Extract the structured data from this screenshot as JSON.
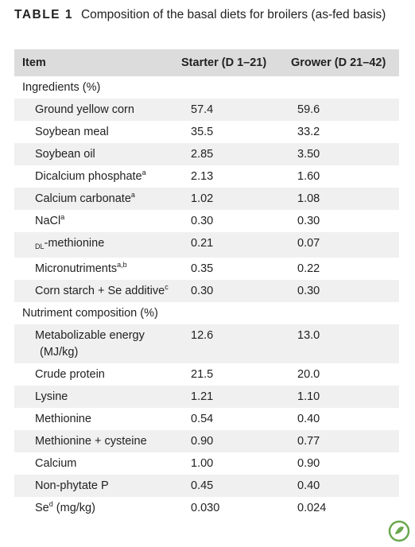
{
  "title": {
    "label": "TABLE 1",
    "caption": "Composition of the basal diets for broilers (as-fed basis)"
  },
  "table": {
    "header": [
      "Item",
      "Starter (D 1–21)",
      "Grower (D 21–42)"
    ],
    "sections": [
      {
        "heading": "Ingredients (%)",
        "rows": [
          {
            "item": "Ground yellow corn",
            "starter": "57.4",
            "grower": "59.6"
          },
          {
            "item": "Soybean meal",
            "starter": "35.5",
            "grower": "33.2"
          },
          {
            "item": "Soybean oil",
            "starter": "2.85",
            "grower": "3.50"
          },
          {
            "item": "Dicalcium phosphate",
            "note": "a",
            "starter": "2.13",
            "grower": "1.60"
          },
          {
            "item": "Calcium carbonate",
            "note": "a",
            "starter": "1.02",
            "grower": "1.08"
          },
          {
            "item": "NaCl",
            "note": "a",
            "starter": "0.30",
            "grower": "0.30"
          },
          {
            "prefix": "DL",
            "item": "-methionine",
            "starter": "0.21",
            "grower": "0.07"
          },
          {
            "item": "Micronutriments",
            "note": "a,b",
            "starter": "0.35",
            "grower": "0.22"
          },
          {
            "item": "Corn starch + Se additive",
            "note": "c",
            "starter": "0.30",
            "grower": "0.30"
          }
        ]
      },
      {
        "heading": "Nutriment composition (%)",
        "rows": [
          {
            "item": "Metabolizable energy (MJ/kg)",
            "starter": "12.6",
            "grower": "13.0"
          },
          {
            "item": "Crude protein",
            "starter": "21.5",
            "grower": "20.0"
          },
          {
            "item": "Lysine",
            "starter": "1.21",
            "grower": "1.10"
          },
          {
            "item": "Methionine",
            "starter": "0.54",
            "grower": "0.40"
          },
          {
            "item": "Methionine + cysteine",
            "starter": "0.90",
            "grower": "0.77"
          },
          {
            "item": "Calcium",
            "starter": "1.00",
            "grower": "0.90"
          },
          {
            "item": "Non-phytate P",
            "starter": "0.45",
            "grower": "0.40"
          },
          {
            "item": "Se",
            "note": "d",
            "unit": "(mg/kg)",
            "starter": "0.030",
            "grower": "0.024"
          }
        ]
      }
    ]
  }
}
